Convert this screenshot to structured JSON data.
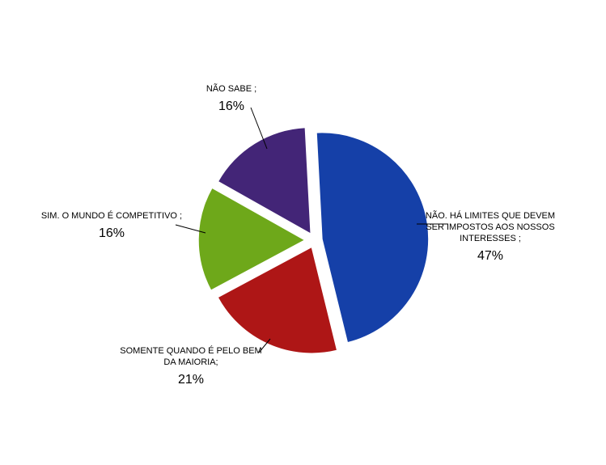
{
  "chart_data": {
    "type": "pie",
    "title": "",
    "slices": [
      {
        "label_lines": [
          "NÃO. HÁ LIMITES QUE DEVEM",
          "SER IMPOSTOS AOS NOSSOS",
          "INTERESSES ;"
        ],
        "value": 47,
        "value_label": "47%",
        "color": "#1540A8"
      },
      {
        "label_lines": [
          "SOMENTE QUANDO É PELO BEM",
          "DA MAIORIA;"
        ],
        "value": 21,
        "value_label": "21%",
        "color": "#AE1616"
      },
      {
        "label_lines": [
          "SIM. O MUNDO É COMPETITIVO ;"
        ],
        "value": 16,
        "value_label": "16%",
        "color": "#6EA81A"
      },
      {
        "label_lines": [
          "NÃO SABE ;"
        ],
        "value": 16,
        "value_label": "16%",
        "color": "#432577"
      }
    ]
  }
}
